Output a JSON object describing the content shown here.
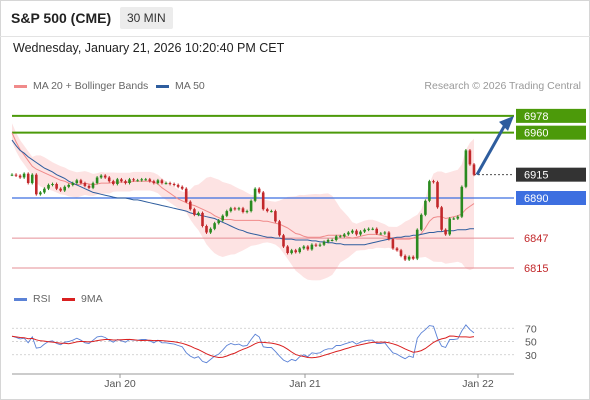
{
  "header": {
    "title": "S&P 500 (CME)",
    "interval": "30 MIN"
  },
  "datetime": "Wednesday, January 21, 2026 10:20:40 PM CET",
  "legend": {
    "bollinger": "MA 20 + Bollinger Bands",
    "ma50": "MA 50",
    "credit": "Research © 2026 Trading Central",
    "rsi": "RSI",
    "rsi_ma": "9MA"
  },
  "colors": {
    "bollinger": "#f08a8a",
    "band_fill": "#fde3e3",
    "ma50": "#2e5d9e",
    "resistance": "#4c9a0a",
    "support": "#e58f96",
    "pivot": "#3d6fe0",
    "last_price": "#333333",
    "up_candle": "#2a8a1f",
    "down_candle": "#c2282b",
    "rsi": "#5b82d6",
    "rsi_ma": "#d92020"
  },
  "chart_data": {
    "type": "candlestick",
    "ylim": [
      6800,
      6995
    ],
    "x_ticks": [
      "Jan 20",
      "Jan 21",
      "Jan 22"
    ],
    "levels": [
      {
        "name": "resistance",
        "label": "6978",
        "value": 6978,
        "style": "green"
      },
      {
        "name": "resistance",
        "label": "6960",
        "value": 6960,
        "style": "green"
      },
      {
        "name": "last",
        "label": "6915",
        "value": 6915,
        "style": "dark"
      },
      {
        "name": "pivot",
        "label": "6890",
        "value": 6890,
        "style": "blue"
      },
      {
        "name": "support",
        "label": "6847",
        "value": 6847,
        "style": "pink"
      },
      {
        "name": "support",
        "label": "6815",
        "value": 6815,
        "style": "pink"
      }
    ],
    "close": [
      6915,
      6914,
      6912,
      6916,
      6906,
      6915,
      6894,
      6896,
      6900,
      6904,
      6905,
      6900,
      6898,
      6902,
      6904,
      6906,
      6909,
      6906,
      6903,
      6901,
      6906,
      6912,
      6914,
      6912,
      6908,
      6905,
      6910,
      6908,
      6906,
      6910,
      6909,
      6909,
      6910,
      6910,
      6908,
      6906,
      6909,
      6906,
      6906,
      6905,
      6904,
      6902,
      6900,
      6886,
      6878,
      6872,
      6874,
      6860,
      6853,
      6857,
      6863,
      6866,
      6871,
      6876,
      6879,
      6878,
      6879,
      6875,
      6876,
      6887,
      6900,
      6896,
      6878,
      6876,
      6876,
      6865,
      6850,
      6838,
      6831,
      6834,
      6832,
      6836,
      6838,
      6835,
      6840,
      6839,
      6840,
      6843,
      6845,
      6845,
      6849,
      6849,
      6851,
      6853,
      6855,
      6851,
      6854,
      6856,
      6857,
      6857,
      6852,
      6852,
      6853,
      6846,
      6836,
      6834,
      6828,
      6824,
      6827,
      6825,
      6856,
      6872,
      6887,
      6908,
      6907,
      6880,
      6856,
      6851,
      6868,
      6868,
      6870,
      6902,
      6941,
      6926,
      6915
    ],
    "ma20": [
      6960,
      6950,
      6942,
      6936,
      6930,
      6924,
      6921,
      6919,
      6917,
      6915,
      6913,
      6911,
      6909,
      6908,
      6906,
      6905,
      6904,
      6905,
      6906,
      6905,
      6904,
      6905,
      6906,
      6906,
      6906,
      6907,
      6907,
      6907,
      6907,
      6907,
      6908,
      6908,
      6908,
      6908,
      6908,
      6907,
      6905,
      6901,
      6898,
      6895,
      6892,
      6889,
      6887,
      6885,
      6883,
      6882,
      6880,
      6878,
      6876,
      6874,
      6871,
      6869,
      6867,
      6867,
      6867,
      6866,
      6866,
      6866,
      6866,
      6866,
      6866,
      6866,
      6865,
      6865,
      6864,
      6863,
      6862,
      6860,
      6858,
      6855,
      6852,
      6851,
      6849,
      6848,
      6848,
      6848,
      6848,
      6849,
      6850,
      6850,
      6850,
      6850,
      6849,
      6848,
      6847,
      6848,
      6849,
      6850,
      6851,
      6851,
      6851,
      6850,
      6849,
      6848,
      6847,
      6846,
      6846,
      6846,
      6846,
      6847,
      6849,
      6852,
      6858,
      6865,
      6869,
      6870,
      6870,
      6868,
      6869,
      6870,
      6871,
      6873,
      6878,
      6881,
      6884
    ],
    "ma50": [
      6952,
      6946,
      6941,
      6938,
      6934,
      6931,
      6928,
      6925,
      6922,
      6920,
      6918,
      6915,
      6913,
      6911,
      6908,
      6906,
      6904,
      6902,
      6900,
      6898,
      6896,
      6895,
      6894,
      6893,
      6892,
      6891,
      6890,
      6890,
      6890,
      6889,
      6888,
      6888,
      6887,
      6886,
      6885,
      6884,
      6883,
      6882,
      6881,
      6880,
      6879,
      6878,
      6877,
      6876,
      6874,
      6873,
      6872,
      6871,
      6870,
      6869,
      6868,
      6866,
      6864,
      6862,
      6860,
      6858,
      6856,
      6855,
      6853,
      6852,
      6851,
      6850,
      6849,
      6848,
      6848,
      6847,
      6847,
      6846,
      6846,
      6846,
      6845,
      6845,
      6845,
      6845,
      6844,
      6844,
      6843,
      6843,
      6842,
      6842,
      6841,
      6841,
      6840,
      6840,
      6840,
      6840,
      6840,
      6840,
      6841,
      6842,
      6843,
      6844,
      6845,
      6846,
      6847,
      6848,
      6848,
      6849,
      6849,
      6850,
      6850,
      6851,
      6852,
      6853,
      6853,
      6854,
      6854,
      6855,
      6855,
      6855,
      6856,
      6856,
      6856,
      6857,
      6857
    ],
    "rsi": [
      58,
      56,
      54,
      55,
      48,
      57,
      40,
      41,
      46,
      50,
      51,
      47,
      45,
      49,
      50,
      52,
      55,
      52,
      48,
      47,
      52,
      57,
      58,
      56,
      52,
      49,
      53,
      51,
      49,
      53,
      52,
      52,
      53,
      53,
      51,
      48,
      52,
      48,
      48,
      47,
      46,
      44,
      42,
      33,
      28,
      25,
      27,
      20,
      18,
      23,
      28,
      31,
      37,
      44,
      47,
      45,
      46,
      43,
      44,
      53,
      61,
      57,
      42,
      41,
      41,
      35,
      28,
      22,
      19,
      23,
      21,
      27,
      30,
      27,
      33,
      32,
      33,
      37,
      39,
      39,
      44,
      44,
      46,
      48,
      50,
      46,
      49,
      51,
      52,
      52,
      47,
      47,
      48,
      40,
      33,
      31,
      27,
      24,
      28,
      26,
      55,
      63,
      68,
      74,
      73,
      55,
      43,
      41,
      53,
      53,
      54,
      66,
      75,
      68,
      63
    ],
    "rsi_ticks": [
      70,
      50,
      30
    ],
    "rsi_ylim": [
      10,
      90
    ]
  }
}
